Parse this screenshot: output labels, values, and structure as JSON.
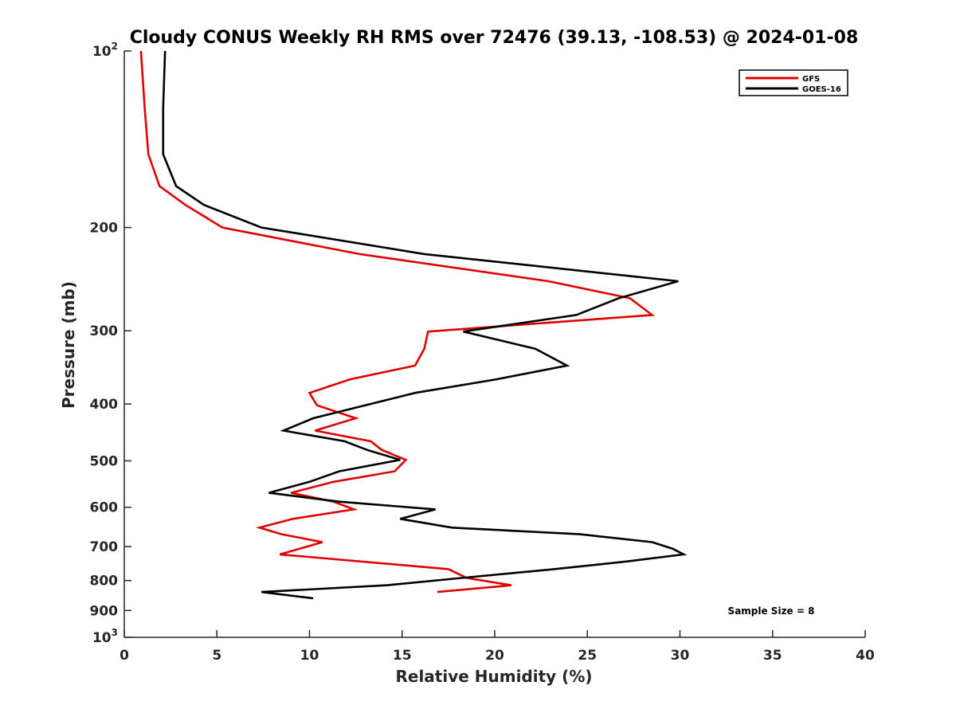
{
  "chart_data": {
    "type": "line",
    "title": "Cloudy CONUS Weekly RH RMS over 72476 (39.13, -108.53) @ 2024-01-08",
    "xlabel": "Relative Humidity (%)",
    "ylabel": "Pressure (mb)",
    "xlim": [
      0,
      40
    ],
    "ylim": [
      100,
      1000
    ],
    "y_scale": "log",
    "y_reversed": true,
    "x_ticks": [
      "0",
      "5",
      "10",
      "15",
      "20",
      "25",
      "30",
      "35",
      "40"
    ],
    "y_ticks": [
      {
        "value": 100,
        "base": "10",
        "exp": "2"
      },
      {
        "value": 200,
        "label": "200"
      },
      {
        "value": 300,
        "label": "300"
      },
      {
        "value": 400,
        "label": "400"
      },
      {
        "value": 500,
        "label": "500"
      },
      {
        "value": 600,
        "label": "600"
      },
      {
        "value": 700,
        "label": "700"
      },
      {
        "value": 800,
        "label": "800"
      },
      {
        "value": 900,
        "label": "900"
      },
      {
        "value": 1000,
        "base": "10",
        "exp": "3"
      }
    ],
    "grid": false,
    "legend_position": "top-right",
    "series": [
      {
        "name": "GFS",
        "color": "#e00000",
        "points": [
          [
            0.9,
            100
          ],
          [
            1.1,
            125
          ],
          [
            1.3,
            150
          ],
          [
            1.9,
            170
          ],
          [
            3.3,
            183
          ],
          [
            5.3,
            200
          ],
          [
            12.7,
            222
          ],
          [
            22.9,
            247
          ],
          [
            27.3,
            264
          ],
          [
            28.5,
            282
          ],
          [
            16.4,
            301
          ],
          [
            16.2,
            322
          ],
          [
            15.7,
            344
          ],
          [
            12.2,
            363
          ],
          [
            10.0,
            383
          ],
          [
            10.4,
            402
          ],
          [
            12.5,
            423
          ],
          [
            10.3,
            444
          ],
          [
            13.3,
            463
          ],
          [
            13.9,
            479
          ],
          [
            15.2,
            498
          ],
          [
            14.6,
            521
          ],
          [
            11.3,
            543
          ],
          [
            9.0,
            567
          ],
          [
            11.3,
            587
          ],
          [
            12.4,
            605
          ],
          [
            9.1,
            628
          ],
          [
            7.3,
            650
          ],
          [
            8.5,
            667
          ],
          [
            10.7,
            688
          ],
          [
            8.4,
            722
          ],
          [
            17.5,
            765
          ],
          [
            18.5,
            792
          ],
          [
            20.9,
            815
          ],
          [
            16.9,
            837
          ]
        ]
      },
      {
        "name": "GOES-16",
        "color": "#000000",
        "points": [
          [
            2.2,
            100
          ],
          [
            2.1,
            125
          ],
          [
            2.1,
            150
          ],
          [
            2.8,
            170
          ],
          [
            4.3,
            183
          ],
          [
            7.4,
            200
          ],
          [
            16.2,
            222
          ],
          [
            29.9,
            247
          ],
          [
            26.7,
            264
          ],
          [
            24.4,
            282
          ],
          [
            18.3,
            301
          ],
          [
            22.2,
            322
          ],
          [
            23.9,
            344
          ],
          [
            20.1,
            363
          ],
          [
            15.7,
            383
          ],
          [
            10.2,
            423
          ],
          [
            8.6,
            444
          ],
          [
            11.9,
            463
          ],
          [
            13.1,
            479
          ],
          [
            14.9,
            498
          ],
          [
            11.6,
            521
          ],
          [
            10.0,
            543
          ],
          [
            7.8,
            567
          ],
          [
            11.6,
            587
          ],
          [
            16.8,
            605
          ],
          [
            14.9,
            628
          ],
          [
            17.7,
            650
          ],
          [
            24.6,
            667
          ],
          [
            28.5,
            688
          ],
          [
            29.6,
            706
          ],
          [
            30.2,
            722
          ],
          [
            27.2,
            742
          ],
          [
            23.2,
            765
          ],
          [
            18.2,
            792
          ],
          [
            14.2,
            815
          ],
          [
            7.4,
            837
          ],
          [
            10.2,
            858
          ]
        ]
      }
    ],
    "legend": [
      "GFS",
      "GOES-16"
    ],
    "annotation": "Sample Size = 8"
  }
}
